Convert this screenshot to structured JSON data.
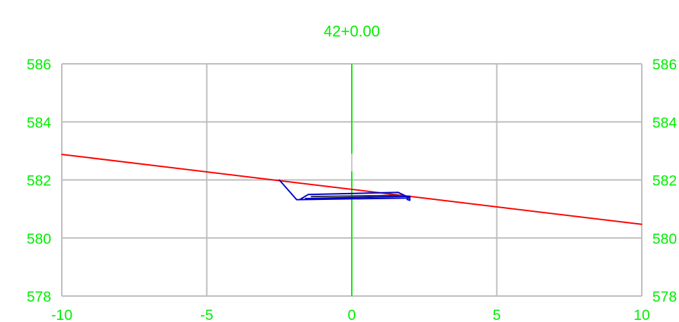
{
  "chart_data": {
    "type": "line",
    "title": "42+0.00",
    "xlabel": "",
    "ylabel": "",
    "xlim": [
      -10,
      10
    ],
    "ylim": [
      578,
      586
    ],
    "x_ticks": [
      -10,
      -5,
      0,
      5,
      10
    ],
    "y_ticks": [
      578,
      580,
      582,
      584,
      586
    ],
    "x_tick_labels": [
      "-10",
      "-5",
      "0",
      "5",
      "10"
    ],
    "y_tick_labels_left": [
      "578",
      "580",
      "582",
      "584",
      "586"
    ],
    "y_tick_labels_right": [
      "578",
      "580",
      "582",
      "584",
      "586"
    ],
    "grid": true,
    "legend": "none",
    "label_color": "#00ee00",
    "grid_color": "#bdbdbd",
    "series": [
      {
        "color": "#ff0000",
        "x": [
          -10,
          10
        ],
        "y": [
          582.88,
          580.47
        ]
      },
      {
        "color": "#0000cc",
        "x": [
          -2.5,
          -1.9,
          2.0,
          1.6,
          -1.5,
          -1.8
        ],
        "y": [
          582.0,
          581.32,
          581.38,
          581.57,
          581.5,
          581.32
        ]
      },
      {
        "color": "#0000cc",
        "x": [
          -1.6,
          2.0,
          2.0,
          1.9
        ],
        "y": [
          581.36,
          581.44,
          581.3,
          581.33
        ]
      },
      {
        "color": "#333333",
        "x": [
          -1.4,
          1.6
        ],
        "y": [
          581.43,
          581.47
        ]
      }
    ],
    "centerline": {
      "color": "#00ee00",
      "x": 0,
      "y": [
        578,
        586
      ],
      "gap": [
        582.3,
        582.9
      ],
      "gap_color": "#c8c8c8"
    }
  }
}
